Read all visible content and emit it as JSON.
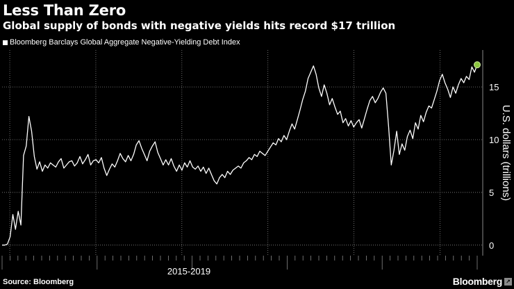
{
  "header": {
    "title": "Less Than Zero",
    "subtitle": "Global supply of bonds with negative yields hits record $17 trillion"
  },
  "footer": {
    "source": "Source: Bloomberg",
    "brand": "Bloomberg",
    "brand_icon": "bloomberg-terminal-icon"
  },
  "colors": {
    "background": "#000000",
    "line": "#ffffff",
    "grid": "#8a8a8a",
    "marker": "#8cc63f"
  },
  "chart_data": {
    "type": "line",
    "title": "Less Than Zero",
    "subtitle": "Global supply of bonds with negative yields hits record $17 trillion",
    "xlabel": "2015-2019",
    "ylabel": "U.S. dollars (trillions)",
    "ylim": [
      -1,
      18.5
    ],
    "yticks": [
      0,
      5,
      10,
      15
    ],
    "grid": true,
    "legend": "top-left",
    "end_marker": true,
    "series": [
      {
        "name": "Bloomberg Barclays Global Aggregate Negative-Yielding Debt Index",
        "values": [
          0,
          0,
          0.1,
          0.8,
          2.9,
          1.5,
          3.2,
          1.9,
          8.5,
          9.4,
          12.2,
          10.8,
          8.4,
          7.2,
          7.9,
          7.0,
          7.6,
          7.3,
          7.8,
          7.6,
          7.4,
          7.9,
          8.2,
          7.3,
          7.6,
          7.9,
          8.0,
          7.5,
          7.8,
          8.4,
          7.7,
          8.1,
          8.6,
          7.6,
          8.0,
          8.1,
          7.8,
          8.3,
          7.3,
          6.6,
          7.2,
          7.7,
          7.4,
          8.0,
          8.7,
          8.2,
          7.9,
          8.5,
          8.0,
          8.6,
          9.5,
          9.9,
          9.2,
          8.6,
          8.0,
          8.9,
          9.4,
          9.8,
          8.8,
          8.2,
          7.6,
          8.1,
          7.6,
          8.2,
          7.5,
          7.0,
          7.6,
          7.1,
          7.8,
          7.4,
          8.0,
          7.4,
          7.2,
          7.5,
          7.0,
          7.4,
          6.8,
          7.3,
          6.7,
          6.1,
          5.8,
          6.4,
          6.7,
          6.4,
          7.0,
          6.7,
          7.1,
          7.3,
          7.5,
          7.3,
          7.8,
          8.0,
          8.3,
          8.1,
          8.6,
          8.4,
          8.9,
          8.7,
          8.5,
          8.9,
          9.3,
          9.7,
          9.5,
          10.1,
          9.8,
          10.4,
          10.0,
          10.8,
          11.5,
          11.0,
          11.9,
          12.8,
          13.8,
          14.6,
          15.8,
          16.4,
          17.0,
          16.2,
          14.9,
          14.1,
          15.2,
          14.4,
          13.3,
          13.9,
          13.1,
          12.4,
          12.7,
          11.6,
          12.0,
          11.3,
          11.8,
          11.2,
          11.6,
          11.9,
          11.1,
          12.0,
          12.9,
          13.7,
          14.1,
          13.5,
          13.9,
          14.5,
          14.9,
          14.4,
          11.2,
          7.6,
          9.0,
          10.8,
          8.6,
          9.6,
          9.0,
          10.3,
          10.9,
          10.1,
          11.6,
          11.0,
          12.3,
          11.7,
          12.6,
          13.2,
          13.0,
          13.8,
          14.6,
          15.6,
          16.2,
          15.4,
          14.8,
          14.0,
          15.0,
          14.4,
          15.2,
          15.8,
          15.4,
          16.0,
          15.7,
          16.9,
          16.4,
          17.1
        ]
      }
    ]
  }
}
